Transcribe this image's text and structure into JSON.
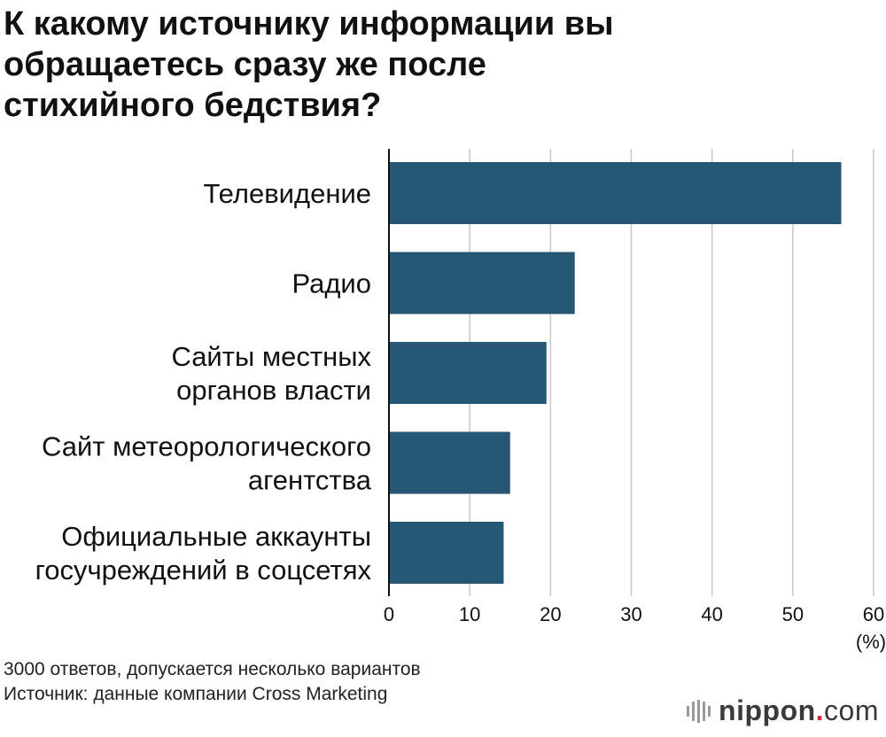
{
  "title": "К какому источнику информации вы\nобращаетесь сразу же после\nстихийного бедствия?",
  "chart_data": {
    "type": "bar",
    "orientation": "horizontal",
    "title": "К какому источнику информации вы обращаетесь сразу же после стихийного бедствия?",
    "categories": [
      [
        "Телевидение"
      ],
      [
        "Радио"
      ],
      [
        "Сайты местных",
        "органов власти"
      ],
      [
        "Сайт метеорологического",
        "агентства"
      ],
      [
        "Официальные аккаунты",
        "госучреждений в соцсетях"
      ]
    ],
    "values": [
      56,
      23,
      19.5,
      15,
      14.2
    ],
    "xlim": [
      0,
      60
    ],
    "xticks": [
      0,
      10,
      20,
      30,
      40,
      50,
      60
    ],
    "unit_label": "(%)",
    "grid": true,
    "bar_color": "#255674"
  },
  "footnotes": [
    "3000 ответов, допускается несколько вариантов",
    "Источник: данные компании Cross Marketing"
  ],
  "logo": {
    "name": "nippon",
    "dot": ".",
    "tld": "com",
    "icon": "nippon-logo-icon"
  },
  "colors": {
    "bar": "#255674",
    "grid": "#c8c8c8",
    "axis": "#111111",
    "logo_dot": "#d7263d"
  }
}
